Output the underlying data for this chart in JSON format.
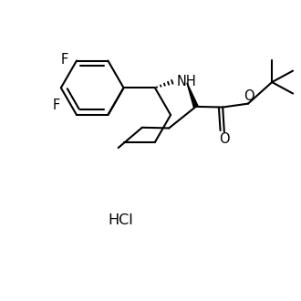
{
  "background_color": "#ffffff",
  "line_color": "#000000",
  "line_width": 1.5,
  "font_size": 10.5,
  "hcl_font_size": 11.5,
  "label_F1": "F",
  "label_F2": "F",
  "label_NH": "NH",
  "label_O_ester": "O",
  "label_O_carbonyl": "O",
  "label_HCl": "HCl"
}
